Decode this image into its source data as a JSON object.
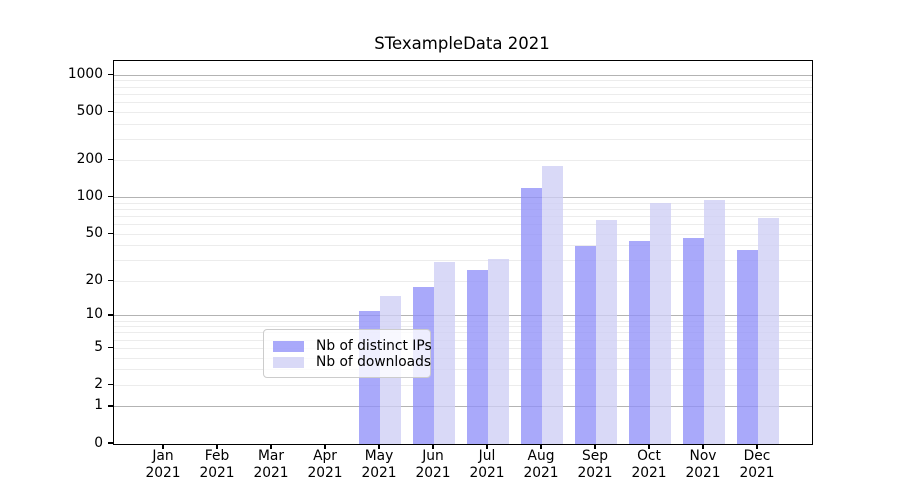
{
  "figure": {
    "background": "#ffffff",
    "axis_color": "#000000"
  },
  "chart_data": {
    "type": "bar",
    "title": "STexampleData 2021",
    "categories": [
      "Jan",
      "Feb",
      "Mar",
      "Apr",
      "May",
      "Jun",
      "Jul",
      "Aug",
      "Sep",
      "Oct",
      "Nov",
      "Dec"
    ],
    "x_tick_year": "2021",
    "series": [
      {
        "name": "Nb of distinct IPs",
        "color": "rgba(145,145,249,0.78)",
        "values": [
          0,
          0,
          0,
          0,
          11,
          18,
          25,
          120,
          40,
          44,
          46,
          37
        ]
      },
      {
        "name": "Nb of downloads",
        "color": "rgba(206,206,245,0.78)",
        "values": [
          0,
          0,
          0,
          0,
          15,
          29,
          31,
          180,
          65,
          91,
          95,
          68
        ]
      }
    ],
    "y_scale": "symlog ln(1+x)",
    "y_ticks": [
      0,
      1,
      2,
      5,
      10,
      20,
      50,
      100,
      200,
      500,
      1000
    ],
    "ylim": [
      0,
      1300
    ],
    "grid": {
      "on": true,
      "major_at": [
        1,
        10,
        100,
        1000
      ],
      "major_color": "#b3b3b3",
      "minor_color": "#ececec"
    },
    "legend": {
      "position": "lower-center",
      "background": "rgba(255,255,255,0.8)",
      "border_color": "#cccccc"
    }
  }
}
